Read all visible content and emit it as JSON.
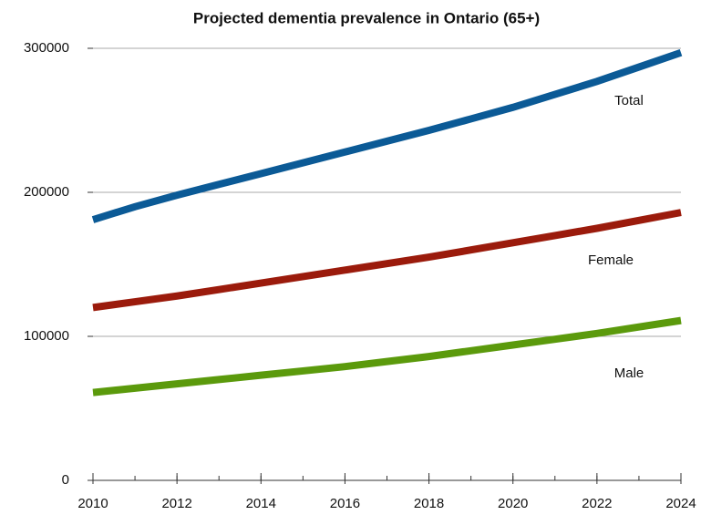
{
  "chart_data": {
    "type": "line",
    "title": "Projected dementia prevalence in Ontario (65+)",
    "x": [
      2010,
      2011,
      2012,
      2013,
      2014,
      2015,
      2016,
      2017,
      2018,
      2019,
      2020,
      2021,
      2022,
      2023,
      2024
    ],
    "series": [
      {
        "name": "Total",
        "color": "#0b5a96",
        "values": [
          181000,
          190000,
          198000,
          205500,
          213000,
          220500,
          228000,
          235500,
          243000,
          251000,
          259000,
          268000,
          277000,
          287000,
          297000
        ]
      },
      {
        "name": "Female",
        "color": "#9b1b0c",
        "values": [
          120000,
          124000,
          128000,
          132500,
          137000,
          141500,
          146000,
          150500,
          155000,
          160000,
          165000,
          170000,
          175000,
          180500,
          186000
        ]
      },
      {
        "name": "Male",
        "color": "#5b9a0c",
        "values": [
          61000,
          64000,
          67000,
          70000,
          73000,
          76000,
          79000,
          82500,
          86000,
          90000,
          94000,
          98000,
          102000,
          106500,
          111000
        ]
      }
    ],
    "xlim": [
      2010,
      2024
    ],
    "xticks": [
      2010,
      2012,
      2014,
      2016,
      2018,
      2020,
      2022,
      2024
    ],
    "ylim": [
      0,
      300000
    ],
    "yticks": [
      0,
      100000,
      200000,
      300000
    ],
    "grid": true
  }
}
